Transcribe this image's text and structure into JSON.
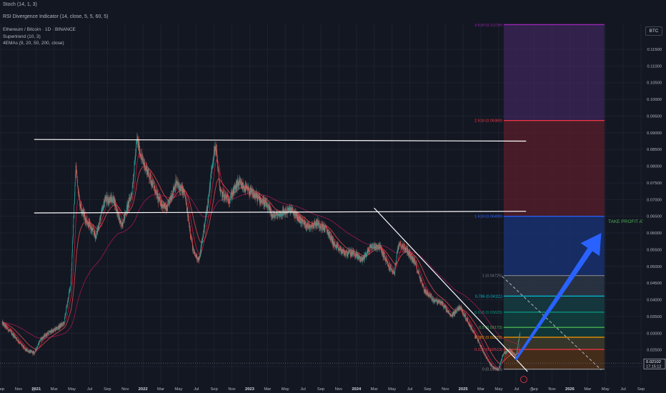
{
  "panes": {
    "stoch_label": "Stoch (14, 1, 3)",
    "rsi_label": "RSI Divergence Indicator (14, close, 5, 5, 60, 5)"
  },
  "legend": {
    "symbol": "Ethereum / Bitcoin · 1D · BINANCE",
    "supertrend": "Supertrend (10, 3)",
    "emas": "4EMAs (9, 20, 50, 200, close)"
  },
  "currency_badge": "BTC",
  "price_badge": {
    "price": "0.02102",
    "countdown": "17:15:12"
  },
  "annotation": {
    "take_profit": "TAKE PROFIT AT 6..."
  },
  "colors": {
    "background": "#131722",
    "grid": "#1e222d",
    "axis_text": "#b2b5be",
    "candle_up": "#26a69a",
    "candle_down": "#ef5350",
    "ema_red": "#ff3d3d",
    "arrow": "#2962ff",
    "take_profit_text": "#4caf50"
  },
  "chart_data": {
    "type": "candlestick",
    "symbol": "ETHBTC",
    "exchange": "BINANCE",
    "interval": "1D",
    "y_axis_ticks": [
      "0.11500",
      "0.11000",
      "0.10500",
      "0.10000",
      "0.09500",
      "0.09000",
      "0.08500",
      "0.08000",
      "0.07500",
      "0.07000",
      "0.06500",
      "0.06000",
      "0.05500",
      "0.05000",
      "0.04500",
      "0.04000",
      "0.03500",
      "0.03000",
      "0.02500",
      "0.02000"
    ],
    "x_axis_ticks": [
      "Sep",
      "Nov",
      "2021",
      "Mar",
      "May",
      "Jul",
      "Sep",
      "Nov",
      "2022",
      "Mar",
      "May",
      "Jul",
      "Sep",
      "Nov",
      "2023",
      "Mar",
      "May",
      "Jul",
      "Sep",
      "Nov",
      "2024",
      "Mar",
      "May",
      "Jul",
      "Sep",
      "Nov",
      "2025",
      "Mar",
      "May",
      "Jul",
      "Sep",
      "Nov",
      "2026",
      "Mar",
      "May",
      "Jul",
      "Sep"
    ],
    "price_path": [
      [
        "2020-09-01",
        0.033
      ],
      [
        "2020-10-15",
        0.029
      ],
      [
        "2020-11-20",
        0.025
      ],
      [
        "2020-12-20",
        0.024
      ],
      [
        "2021-01-10",
        0.028
      ],
      [
        "2021-02-05",
        0.03
      ],
      [
        "2021-03-01",
        0.031
      ],
      [
        "2021-04-01",
        0.033
      ],
      [
        "2021-04-25",
        0.045
      ],
      [
        "2021-05-12",
        0.08
      ],
      [
        "2021-05-25",
        0.069
      ],
      [
        "2021-06-15",
        0.064
      ],
      [
        "2021-07-20",
        0.059
      ],
      [
        "2021-08-20",
        0.07
      ],
      [
        "2021-09-20",
        0.07
      ],
      [
        "2021-10-15",
        0.062
      ],
      [
        "2021-11-20",
        0.072
      ],
      [
        "2021-12-08",
        0.088
      ],
      [
        "2021-12-25",
        0.082
      ],
      [
        "2022-01-20",
        0.077
      ],
      [
        "2022-02-20",
        0.07
      ],
      [
        "2022-03-20",
        0.067
      ],
      [
        "2022-04-20",
        0.075
      ],
      [
        "2022-05-20",
        0.072
      ],
      [
        "2022-06-20",
        0.054
      ],
      [
        "2022-07-10",
        0.052
      ],
      [
        "2022-08-10",
        0.07
      ],
      [
        "2022-08-25",
        0.082
      ],
      [
        "2022-09-05",
        0.086
      ],
      [
        "2022-09-20",
        0.072
      ],
      [
        "2022-10-20",
        0.07
      ],
      [
        "2022-11-20",
        0.075
      ],
      [
        "2022-12-20",
        0.073
      ],
      [
        "2023-01-20",
        0.071
      ],
      [
        "2023-02-20",
        0.069
      ],
      [
        "2023-03-20",
        0.065
      ],
      [
        "2023-04-20",
        0.066
      ],
      [
        "2023-05-20",
        0.067
      ],
      [
        "2023-06-20",
        0.064
      ],
      [
        "2023-07-20",
        0.062
      ],
      [
        "2023-08-20",
        0.063
      ],
      [
        "2023-09-20",
        0.061
      ],
      [
        "2023-10-20",
        0.056
      ],
      [
        "2023-11-20",
        0.054
      ],
      [
        "2023-12-20",
        0.054
      ],
      [
        "2024-01-20",
        0.052
      ],
      [
        "2024-02-20",
        0.056
      ],
      [
        "2024-03-20",
        0.056
      ],
      [
        "2024-04-20",
        0.05
      ],
      [
        "2024-05-10",
        0.048
      ],
      [
        "2024-05-25",
        0.057
      ],
      [
        "2024-06-20",
        0.055
      ],
      [
        "2024-07-20",
        0.051
      ],
      [
        "2024-08-20",
        0.043
      ],
      [
        "2024-09-20",
        0.04
      ],
      [
        "2024-10-20",
        0.039
      ],
      [
        "2024-11-20",
        0.035
      ],
      [
        "2024-12-20",
        0.038
      ],
      [
        "2025-01-20",
        0.033
      ],
      [
        "2025-02-20",
        0.028
      ],
      [
        "2025-03-20",
        0.023
      ],
      [
        "2025-04-10",
        0.02
      ],
      [
        "2025-05-01",
        0.019
      ],
      [
        "2025-05-20",
        0.024
      ],
      [
        "2025-06-10",
        0.025
      ],
      [
        "2025-06-30",
        0.023
      ],
      [
        "2025-07-15",
        0.03
      ]
    ],
    "trend_lines": [
      {
        "from": [
          "2020-12-20",
          0.088
        ],
        "to": [
          "2025-08-05",
          0.0875
        ],
        "color": "#ffffff"
      },
      {
        "from": [
          "2020-12-20",
          0.066
        ],
        "to": [
          "2025-08-05",
          0.0665
        ],
        "color": "#ffffff"
      },
      {
        "from": [
          "2024-03-01",
          0.0675
        ],
        "to": [
          "2025-08-10",
          0.0185
        ],
        "color": "#ffffff"
      },
      {
        "from": [
          "2025-05-15",
          0.047
        ],
        "to": [
          "2026-04-20",
          0.019
        ],
        "color": "#b2b5be",
        "dashed": true
      }
    ],
    "fib_levels": [
      {
        "label": "0 (0.01923)",
        "value": 0.01923
      },
      {
        "label": "0.236 (0.02513)",
        "value": 0.02513
      },
      {
        "label": "0.382 (0.02878)",
        "value": 0.02878
      },
      {
        "label": "0.5 (0.03173)",
        "value": 0.03173
      },
      {
        "label": "0.618 (0.03629)",
        "value": 0.03629
      },
      {
        "label": "0.786 (0.04111)",
        "value": 0.04111
      },
      {
        "label": "1 (0.04725)",
        "value": 0.04725
      },
      {
        "label": "1.618 (0.06499)",
        "value": 0.06499
      },
      {
        "label": "2.618 (0.09369)",
        "value": 0.09369
      },
      {
        "label": "3.618 (0.12239)",
        "value": 0.12239
      }
    ],
    "fib_range": {
      "x_start": "2025-05-20",
      "x_end": "2026-05-01"
    },
    "arrow": {
      "from": [
        "2025-06-30",
        0.022
      ],
      "to": [
        "2026-04-20",
        0.06
      ]
    },
    "last_price": 0.02102
  }
}
